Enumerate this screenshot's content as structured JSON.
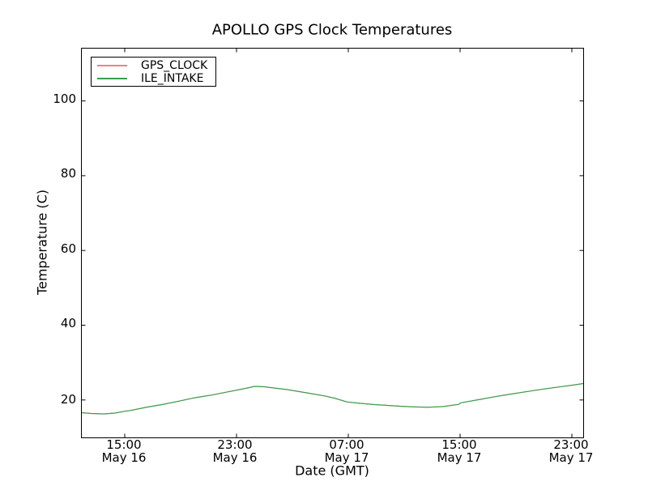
{
  "figure": {
    "title": "APOLLO GPS Clock Temperatures",
    "xlabel": "Date (GMT)",
    "ylabel": "Temperature (C)",
    "background_color": "#ffffff",
    "axis_color": "#000000"
  },
  "legend": {
    "position": "upper-left",
    "items": [
      {
        "label": "GPS_CLOCK",
        "color": "#f08080"
      },
      {
        "label": "ILE_INTAKE",
        "color": "#3a9e4b"
      }
    ]
  },
  "chart_data": {
    "type": "line",
    "title": "APOLLO GPS Clock Temperatures",
    "xlabel": "Date (GMT)",
    "ylabel": "Temperature (C)",
    "grid": false,
    "legend_position": "upper left",
    "x_axis": {
      "unit": "hours since May 16 00:00 GMT",
      "range": [
        11.93,
        47.81
      ],
      "tick_hours": [
        15,
        23,
        31,
        39,
        47
      ],
      "ticks": [
        {
          "time": "15:00",
          "date": "May 16"
        },
        {
          "time": "23:00",
          "date": "May 16"
        },
        {
          "time": "07:00",
          "date": "May 17"
        },
        {
          "time": "15:00",
          "date": "May 17"
        },
        {
          "time": "23:00",
          "date": "May 17"
        }
      ]
    },
    "y_axis": {
      "range": [
        10,
        114
      ],
      "ticks": [
        100,
        80,
        60,
        40,
        20
      ]
    },
    "series": [
      {
        "name": "GPS_CLOCK",
        "color": "#f08080",
        "width": 1,
        "note": "coincident with ILE_INTAKE; hidden beneath the green line",
        "points": [
          [
            11.93,
            16.6
          ],
          [
            12.6,
            16.4
          ],
          [
            13.5,
            16.28
          ],
          [
            14.3,
            16.5
          ],
          [
            15.0,
            17.0
          ],
          [
            15.4,
            17.2
          ],
          [
            16.6,
            18.1
          ],
          [
            17.7,
            18.8
          ],
          [
            18.9,
            19.7
          ],
          [
            20.0,
            20.6
          ],
          [
            21.2,
            21.3
          ],
          [
            22.4,
            22.2
          ],
          [
            23.5,
            23.0
          ],
          [
            24.3,
            23.65
          ],
          [
            25.0,
            23.55
          ],
          [
            25.5,
            23.3
          ],
          [
            26.6,
            22.8
          ],
          [
            28.2,
            21.8
          ],
          [
            29.3,
            21.1
          ],
          [
            30.0,
            20.5
          ],
          [
            30.9,
            19.5
          ],
          [
            31.9,
            19.1
          ],
          [
            32.8,
            18.8
          ],
          [
            34.7,
            18.35
          ],
          [
            35.8,
            18.15
          ],
          [
            36.7,
            18.05
          ],
          [
            37.8,
            18.25
          ],
          [
            38.9,
            18.85
          ],
          [
            39.05,
            19.25
          ],
          [
            40.5,
            20.2
          ],
          [
            41.5,
            20.9
          ],
          [
            42.5,
            21.5
          ],
          [
            43.5,
            22.1
          ],
          [
            44.4,
            22.6
          ],
          [
            45.4,
            23.15
          ],
          [
            46.3,
            23.6
          ],
          [
            47.1,
            24.0
          ],
          [
            47.81,
            24.4
          ]
        ]
      },
      {
        "name": "ILE_INTAKE",
        "color": "#3a9e4b",
        "width": 1.2,
        "points": [
          [
            11.93,
            16.6
          ],
          [
            12.6,
            16.4
          ],
          [
            13.5,
            16.28
          ],
          [
            14.3,
            16.5
          ],
          [
            15.0,
            17.0
          ],
          [
            15.4,
            17.2
          ],
          [
            16.6,
            18.1
          ],
          [
            17.7,
            18.8
          ],
          [
            18.9,
            19.7
          ],
          [
            20.0,
            20.6
          ],
          [
            21.2,
            21.3
          ],
          [
            22.4,
            22.2
          ],
          [
            23.5,
            23.0
          ],
          [
            24.3,
            23.65
          ],
          [
            25.0,
            23.55
          ],
          [
            25.5,
            23.3
          ],
          [
            26.6,
            22.8
          ],
          [
            28.2,
            21.8
          ],
          [
            29.3,
            21.1
          ],
          [
            30.0,
            20.5
          ],
          [
            30.9,
            19.5
          ],
          [
            31.9,
            19.1
          ],
          [
            32.8,
            18.8
          ],
          [
            34.7,
            18.35
          ],
          [
            35.8,
            18.15
          ],
          [
            36.7,
            18.05
          ],
          [
            37.8,
            18.25
          ],
          [
            38.9,
            18.85
          ],
          [
            39.05,
            19.25
          ],
          [
            40.5,
            20.2
          ],
          [
            41.5,
            20.9
          ],
          [
            42.5,
            21.5
          ],
          [
            43.5,
            22.1
          ],
          [
            44.4,
            22.6
          ],
          [
            45.4,
            23.15
          ],
          [
            46.3,
            23.6
          ],
          [
            47.1,
            24.0
          ],
          [
            47.81,
            24.4
          ]
        ]
      }
    ]
  }
}
